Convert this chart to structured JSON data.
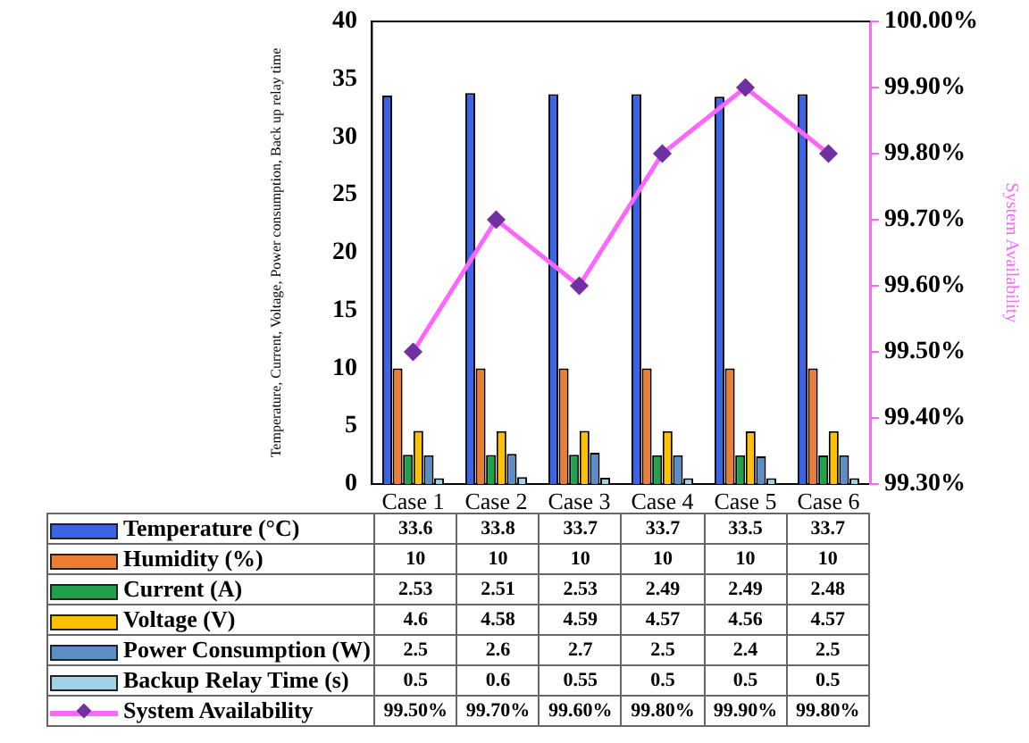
{
  "chart_data": {
    "type": "bar",
    "ylabel": "Temperature, Current, Voltage, Power consumption, Back up relay time",
    "y2label": "System Availability",
    "categories": [
      "Case 1",
      "Case 2",
      "Case 3",
      "Case 4",
      "Case 5",
      "Case 6"
    ],
    "series": [
      {
        "name": "Temperature (°C)",
        "color": "#3b63e8",
        "values": [
          33.6,
          33.8,
          33.7,
          33.7,
          33.5,
          33.7
        ],
        "value_labels": [
          "33.6",
          "33.8",
          "33.7",
          "33.7",
          "33.5",
          "33.7"
        ]
      },
      {
        "name": "Humidity (%)",
        "color": "#ed7d31",
        "values": [
          10,
          10,
          10,
          10,
          10,
          10
        ],
        "value_labels": [
          "10",
          "10",
          "10",
          "10",
          "10",
          "10"
        ]
      },
      {
        "name": "Current (A)",
        "color": "#1fa34a",
        "values": [
          2.53,
          2.51,
          2.53,
          2.49,
          2.49,
          2.48
        ],
        "value_labels": [
          "2.53",
          "2.51",
          "2.53",
          "2.49",
          "2.49",
          "2.48"
        ]
      },
      {
        "name": "Voltage (V)",
        "color": "#ffc000",
        "values": [
          4.6,
          4.58,
          4.59,
          4.57,
          4.56,
          4.57
        ],
        "value_labels": [
          "4.6",
          "4.58",
          "4.59",
          "4.57",
          "4.56",
          "4.57"
        ]
      },
      {
        "name": "Power Consumption (W)",
        "color": "#5b8ec8",
        "values": [
          2.5,
          2.6,
          2.7,
          2.5,
          2.4,
          2.5
        ],
        "value_labels": [
          "2.5",
          "2.6",
          "2.7",
          "2.5",
          "2.4",
          "2.5"
        ]
      },
      {
        "name": "Backup Relay Time (s)",
        "color": "#9fd3e6",
        "values": [
          0.5,
          0.6,
          0.55,
          0.5,
          0.5,
          0.5
        ],
        "value_labels": [
          "0.5",
          "0.6",
          "0.55",
          "0.5",
          "0.5",
          "0.5"
        ]
      },
      {
        "name": "System Availability",
        "type": "line",
        "axis": "y2",
        "color": "#ff66ff",
        "marker": "diamond",
        "values": [
          99.5,
          99.7,
          99.6,
          99.8,
          99.9,
          99.8
        ],
        "value_labels": [
          "99.50%",
          "99.70%",
          "99.60%",
          "99.80%",
          "99.90%",
          "99.80%"
        ]
      }
    ],
    "ylim": [
      0,
      40
    ],
    "yticks": [
      0,
      5,
      10,
      15,
      20,
      25,
      30,
      35,
      40
    ],
    "y2lim": [
      99.3,
      100
    ],
    "y2ticks": [
      {
        "value": 99.3,
        "label": "99.30%"
      },
      {
        "value": 99.4,
        "label": "99.40%"
      },
      {
        "value": 99.5,
        "label": "99.50%"
      },
      {
        "value": 99.6,
        "label": "99.60%"
      },
      {
        "value": 99.7,
        "label": "99.70%"
      },
      {
        "value": 99.8,
        "label": "99.80%"
      },
      {
        "value": 99.9,
        "label": "99.90%"
      },
      {
        "value": 100,
        "label": "100.00%"
      }
    ],
    "grid": false,
    "legend": "bottom"
  }
}
